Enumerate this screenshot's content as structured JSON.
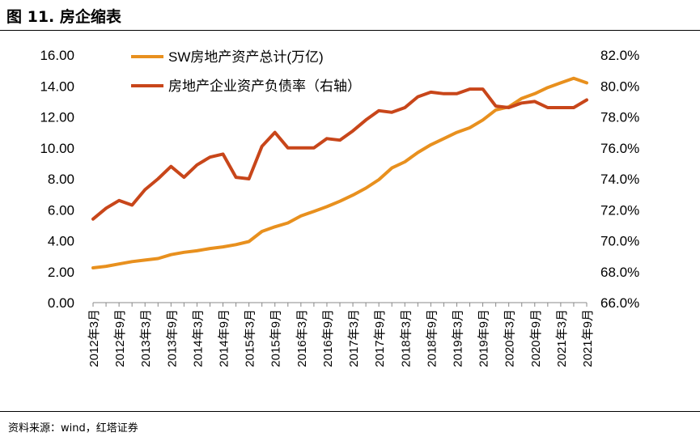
{
  "figure_title": "图 11. 房企缩表",
  "source_note": "资料来源：wind，红塔证券",
  "colors": {
    "assets": "#e8901e",
    "ratio": "#c8461a",
    "axis": "#888888"
  },
  "chart_data": {
    "type": "line",
    "title": "",
    "xlabel": "",
    "ylabel": "",
    "x": [
      "2012年3月",
      "2012年6月",
      "2012年9月",
      "2012年12月",
      "2013年3月",
      "2013年6月",
      "2013年9月",
      "2013年12月",
      "2014年3月",
      "2014年6月",
      "2014年9月",
      "2014年12月",
      "2015年3月",
      "2015年6月",
      "2015年9月",
      "2015年12月",
      "2016年3月",
      "2016年6月",
      "2016年9月",
      "2016年12月",
      "2017年3月",
      "2017年6月",
      "2017年9月",
      "2017年12月",
      "2018年3月",
      "2018年6月",
      "2018年9月",
      "2018年12月",
      "2019年3月",
      "2019年6月",
      "2019年9月",
      "2019年12月",
      "2020年3月",
      "2020年6月",
      "2020年9月",
      "2020年12月",
      "2021年3月",
      "2021年6月",
      "2021年9月"
    ],
    "tick_labels": [
      "2012年3月",
      "2012年9月",
      "2013年3月",
      "2013年9月",
      "2014年3月",
      "2014年9月",
      "2015年3月",
      "2015年9月",
      "2016年3月",
      "2016年9月",
      "2017年3月",
      "2017年9月",
      "2018年3月",
      "2018年9月",
      "2019年3月",
      "2019年9月",
      "2020年3月",
      "2020年9月",
      "2021年3月",
      "2021年9月"
    ],
    "y_left": {
      "ylim": [
        0,
        16
      ],
      "ticks": [
        "0.00",
        "2.00",
        "4.00",
        "6.00",
        "8.00",
        "10.00",
        "12.00",
        "14.00",
        "16.00"
      ]
    },
    "y_right": {
      "ylim": [
        66,
        82
      ],
      "ticks": [
        "66.0%",
        "68.0%",
        "70.0%",
        "72.0%",
        "74.0%",
        "76.0%",
        "78.0%",
        "80.0%",
        "82.0%"
      ]
    },
    "legend": {
      "placement": "top-left"
    },
    "grid": false,
    "series": [
      {
        "name": "SW房地产资产总计(万亿)",
        "axis": "left",
        "values": [
          2.25,
          2.35,
          2.5,
          2.65,
          2.75,
          2.85,
          3.1,
          3.25,
          3.35,
          3.5,
          3.6,
          3.75,
          3.95,
          4.6,
          4.9,
          5.15,
          5.6,
          5.9,
          6.2,
          6.55,
          6.95,
          7.4,
          7.95,
          8.7,
          9.1,
          9.7,
          10.2,
          10.6,
          11.0,
          11.3,
          11.8,
          12.45,
          12.65,
          13.2,
          13.5,
          13.9,
          14.2,
          14.5,
          14.2
        ]
      },
      {
        "name": "房地产企业资产负债率（右轴）",
        "axis": "right",
        "values": [
          71.4,
          72.1,
          72.6,
          72.3,
          73.3,
          74.0,
          74.8,
          74.1,
          74.9,
          75.4,
          75.6,
          74.1,
          74.0,
          76.1,
          77.0,
          76.0,
          76.0,
          76.0,
          76.6,
          76.5,
          77.1,
          77.8,
          78.4,
          78.3,
          78.6,
          79.3,
          79.6,
          79.5,
          79.5,
          79.8,
          79.8,
          78.7,
          78.6,
          78.9,
          79.0,
          78.6,
          78.6,
          78.6,
          79.1
        ]
      }
    ]
  }
}
